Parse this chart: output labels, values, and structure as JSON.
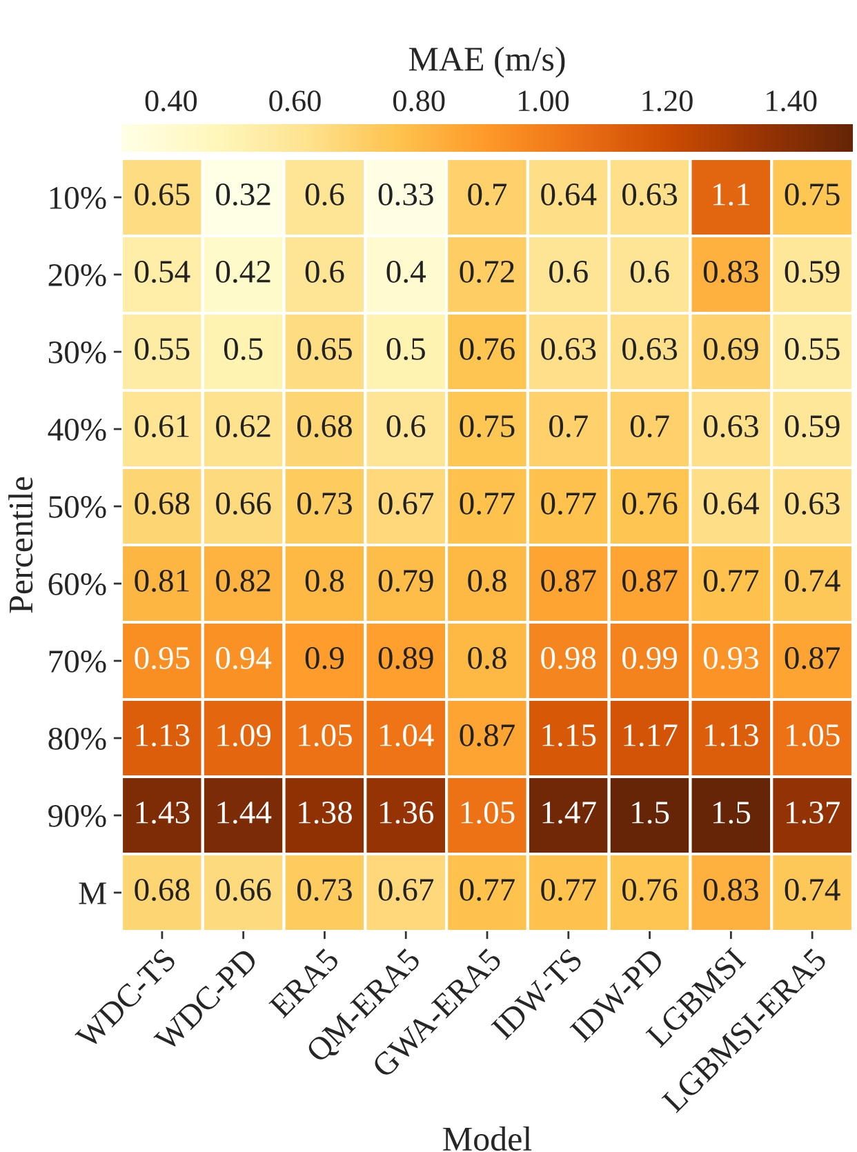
{
  "chart_data": {
    "type": "heatmap",
    "xlabel": "Model",
    "ylabel": "Percentile",
    "clabel": "MAE (m/s)",
    "categories": [
      "WDC-TS",
      "WDC-PD",
      "ERA5",
      "QM-ERA5",
      "GWA-ERA5",
      "IDW-TS",
      "IDW-PD",
      "LGBMSI",
      "LGBMSI-ERA5"
    ],
    "y_categories": [
      "10%",
      "20%",
      "30%",
      "40%",
      "50%",
      "60%",
      "70%",
      "80%",
      "90%",
      "M"
    ],
    "cells": [
      [
        0.65,
        0.32,
        0.6,
        0.33,
        0.7,
        0.64,
        0.63,
        1.1,
        0.75
      ],
      [
        0.54,
        0.42,
        0.6,
        0.4,
        0.72,
        0.6,
        0.6,
        0.83,
        0.59
      ],
      [
        0.55,
        0.5,
        0.65,
        0.5,
        0.76,
        0.63,
        0.63,
        0.69,
        0.55
      ],
      [
        0.61,
        0.62,
        0.68,
        0.6,
        0.75,
        0.7,
        0.7,
        0.63,
        0.59
      ],
      [
        0.68,
        0.66,
        0.73,
        0.67,
        0.77,
        0.77,
        0.76,
        0.64,
        0.63
      ],
      [
        0.81,
        0.82,
        0.8,
        0.79,
        0.8,
        0.87,
        0.87,
        0.77,
        0.74
      ],
      [
        0.95,
        0.94,
        0.9,
        0.89,
        0.8,
        0.98,
        0.99,
        0.93,
        0.87
      ],
      [
        1.13,
        1.09,
        1.05,
        1.04,
        0.87,
        1.15,
        1.17,
        1.13,
        1.05
      ],
      [
        1.43,
        1.44,
        1.38,
        1.36,
        1.05,
        1.47,
        1.5,
        1.5,
        1.37
      ],
      [
        0.68,
        0.66,
        0.73,
        0.67,
        0.77,
        0.77,
        0.76,
        0.83,
        0.74
      ]
    ],
    "clim": [
      0.32,
      1.5
    ],
    "cticks": [
      {
        "value": 0.4,
        "label": "0.40"
      },
      {
        "value": 0.6,
        "label": "0.60"
      },
      {
        "value": 0.8,
        "label": "0.80"
      },
      {
        "value": 1.0,
        "label": "1.00"
      },
      {
        "value": 1.2,
        "label": "1.20"
      },
      {
        "value": 1.4,
        "label": "1.40"
      }
    ],
    "data_labels": true
  }
}
